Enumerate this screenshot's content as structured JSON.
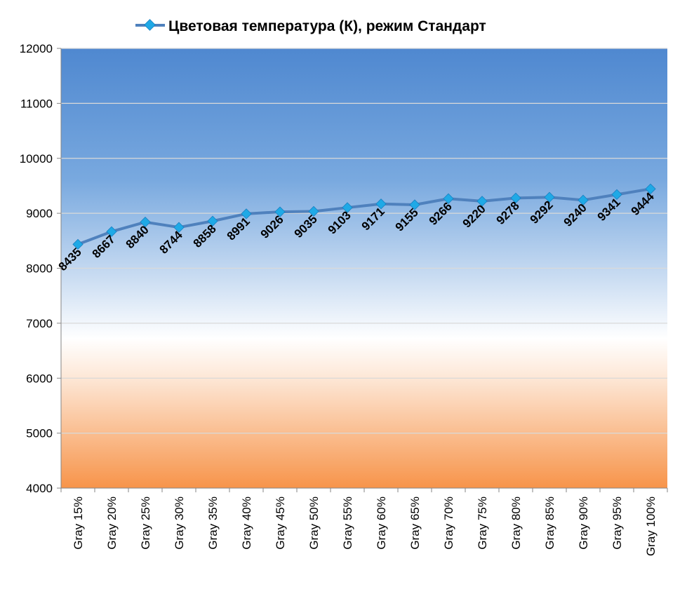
{
  "chart_data": {
    "type": "line",
    "title": "",
    "xlabel": "",
    "ylabel": "",
    "ylim": [
      4000,
      12000
    ],
    "yticks": [
      4000,
      5000,
      6000,
      7000,
      8000,
      9000,
      10000,
      11000,
      12000
    ],
    "grid": true,
    "legend_position": "top",
    "categories": [
      "Gray 15%",
      "Gray 20%",
      "Gray 25%",
      "Gray 30%",
      "Gray 35%",
      "Gray 40%",
      "Gray 45%",
      "Gray 50%",
      "Gray 55%",
      "Gray 60%",
      "Gray 65%",
      "Gray 70%",
      "Gray 75%",
      "Gray 80%",
      "Gray 85%",
      "Gray 90%",
      "Gray 95%",
      "Gray 100%"
    ],
    "series": [
      {
        "name": "Цветовая температура (К), режим Стандарт",
        "color": "#4f81bd",
        "marker_color": "#1fa9e6",
        "values": [
          8435,
          8667,
          8840,
          8744,
          8858,
          8991,
          9026,
          9035,
          9103,
          9171,
          9155,
          9266,
          9220,
          9278,
          9292,
          9240,
          9341,
          9444
        ]
      }
    ],
    "background_gradient": [
      "#4f88d0",
      "#ffffff",
      "#f7944a"
    ]
  }
}
